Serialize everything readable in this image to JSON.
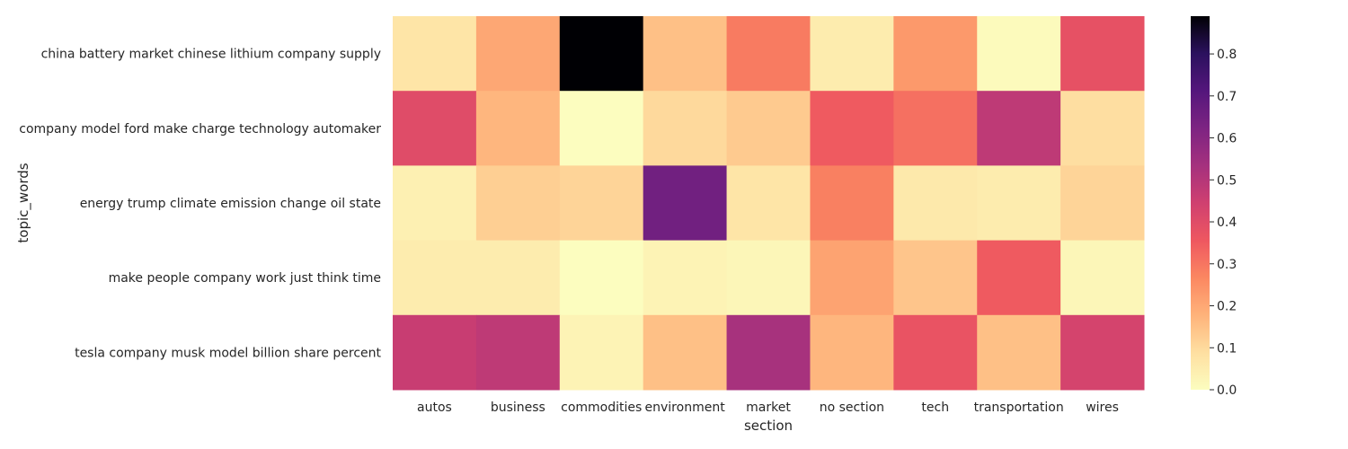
{
  "chart_data": {
    "type": "heatmap",
    "title": "",
    "xlabel": "section",
    "ylabel": "topic_words",
    "x_categories": [
      "autos",
      "business",
      "commodities",
      "environment",
      "market",
      "no section",
      "tech",
      "transportation",
      "wires"
    ],
    "y_categories": [
      "china battery market chinese lithium company supply",
      "company model ford make charge technology automaker",
      "energy trump climate emission change oil state",
      "make people company work just think time",
      "tesla company musk model billion share percent"
    ],
    "values": [
      [
        0.07,
        0.2,
        0.89,
        0.15,
        0.29,
        0.05,
        0.23,
        0.01,
        0.38
      ],
      [
        0.4,
        0.17,
        0.0,
        0.1,
        0.13,
        0.35,
        0.31,
        0.48,
        0.09
      ],
      [
        0.04,
        0.12,
        0.11,
        0.65,
        0.07,
        0.28,
        0.06,
        0.05,
        0.11
      ],
      [
        0.05,
        0.05,
        0.0,
        0.03,
        0.02,
        0.21,
        0.14,
        0.35,
        0.02
      ],
      [
        0.46,
        0.48,
        0.03,
        0.15,
        0.53,
        0.17,
        0.37,
        0.15,
        0.43
      ]
    ],
    "vmin": 0.0,
    "vmax": 0.89,
    "colormap": "magma_r",
    "colorbar": {
      "ticks": [
        0.0,
        0.1,
        0.2,
        0.3,
        0.4,
        0.5,
        0.6,
        0.7,
        0.8
      ],
      "tick_labels": [
        "0.0",
        "0.1",
        "0.2",
        "0.3",
        "0.4",
        "0.5",
        "0.6",
        "0.7",
        "0.8"
      ]
    },
    "grid": false
  }
}
